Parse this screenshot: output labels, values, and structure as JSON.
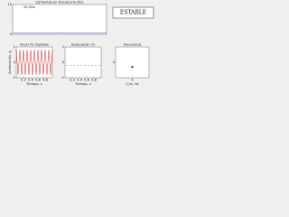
{
  "status": "ESTABLE",
  "chart_data": [
    {
      "type": "line",
      "title": "Contenido en Frecuencia (Hz)",
      "annotation": "25.0Hz",
      "xlim": [
        0,
        50
      ],
      "xticks": [],
      "ylim": [
        0,
        10
      ],
      "yticks": [
        0,
        10
      ],
      "series": [
        {
          "color": "#3050c0",
          "style": "line",
          "x": [
            0,
            5,
            10,
            15,
            20,
            25,
            30,
            35,
            40,
            45,
            50
          ],
          "values": [
            0.4,
            0.4,
            0.4,
            0.4,
            0.4,
            0.5,
            0.4,
            0.4,
            0.4,
            0.4,
            0.4
          ]
        }
      ]
    },
    {
      "type": "line",
      "title": "Accel Y2 medidas",
      "xlabel": "Tiempo, s",
      "ylabel": "Aceleración, g",
      "xlim": [
        0,
        1
      ],
      "xticks": [
        0.2,
        0.4,
        0.6,
        0.8
      ],
      "ylim": [
        -1,
        1
      ],
      "yticks": [
        -1,
        0,
        1
      ],
      "series": [
        {
          "color": "#e03030",
          "style": "line",
          "x": [
            0,
            0.05,
            0.1,
            0.15,
            0.2,
            0.25,
            0.3,
            0.35,
            0.4,
            0.45,
            0.5,
            0.55,
            0.6,
            0.65,
            0.7,
            0.75,
            0.8,
            0.85,
            0.9,
            0.95,
            1
          ],
          "values": [
            0.8,
            -0.8,
            0.8,
            -0.8,
            0.8,
            -0.8,
            0.8,
            -0.8,
            0.8,
            -0.8,
            0.8,
            -0.8,
            0.8,
            -0.8,
            0.8,
            -0.8,
            0.8,
            -0.8,
            0.8,
            -0.8,
            0.8
          ]
        }
      ]
    },
    {
      "type": "line",
      "title": "Aceleración Y2",
      "xlabel": "Tiempo, s",
      "xlim": [
        0,
        1
      ],
      "xticks": [
        0.2,
        0.4,
        0.6,
        0.8
      ],
      "ylim": [
        -1,
        1
      ],
      "yticks": [
        -1,
        0,
        1
      ],
      "series": [
        {
          "color": "#3050c0",
          "style": "dots",
          "x": [
            0.05,
            0.15,
            0.25,
            0.35,
            0.45,
            0.55,
            0.65,
            0.75,
            0.85,
            0.95
          ],
          "values": [
            -0.2,
            -0.2,
            -0.2,
            -0.2,
            -0.2,
            -0.2,
            -0.2,
            -0.2,
            -0.2,
            -0.2
          ]
        }
      ]
    },
    {
      "type": "scatter",
      "title": "Frecuencia",
      "xlabel": "f_hz, Hz",
      "xlim": [
        -1,
        1
      ],
      "xticks": [
        0
      ],
      "ylim": [
        -1,
        1
      ],
      "yticks": [
        0
      ],
      "series": [
        {
          "color": "#3050c0",
          "style": "markers",
          "x": [
            0
          ],
          "values": [
            -0.3
          ]
        }
      ]
    }
  ]
}
